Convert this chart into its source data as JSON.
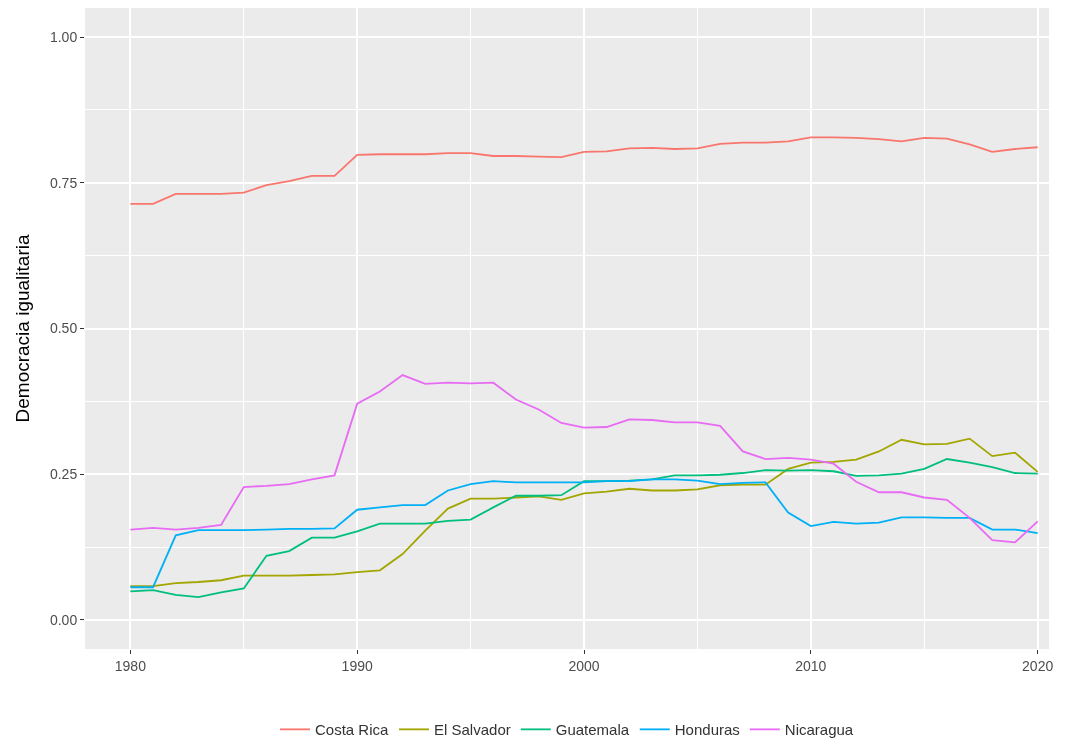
{
  "chart_data": {
    "type": "line",
    "ylabel": "Democracia igualitaria",
    "x": [
      1980,
      1981,
      1982,
      1983,
      1984,
      1985,
      1986,
      1987,
      1988,
      1989,
      1990,
      1991,
      1992,
      1993,
      1994,
      1995,
      1996,
      1997,
      1998,
      1999,
      2000,
      2001,
      2002,
      2003,
      2004,
      2005,
      2006,
      2007,
      2008,
      2009,
      2010,
      2011,
      2012,
      2013,
      2014,
      2015,
      2016,
      2017,
      2018,
      2019,
      2020
    ],
    "series": [
      {
        "name": "Costa Rica",
        "color": "#f8766d",
        "values": [
          0.714,
          0.714,
          0.731,
          0.731,
          0.731,
          0.733,
          0.746,
          0.753,
          0.762,
          0.762,
          0.798,
          0.799,
          0.799,
          0.799,
          0.801,
          0.801,
          0.796,
          0.796,
          0.795,
          0.794,
          0.803,
          0.804,
          0.809,
          0.81,
          0.808,
          0.809,
          0.817,
          0.819,
          0.819,
          0.821,
          0.828,
          0.828,
          0.827,
          0.825,
          0.821,
          0.827,
          0.826,
          0.816,
          0.803,
          0.808,
          0.811
        ]
      },
      {
        "name": "El Salvador",
        "color": "#a3a500",
        "values": [
          0.058,
          0.058,
          0.063,
          0.065,
          0.068,
          0.076,
          0.076,
          0.076,
          0.077,
          0.078,
          0.082,
          0.085,
          0.113,
          0.153,
          0.191,
          0.208,
          0.208,
          0.21,
          0.212,
          0.206,
          0.217,
          0.22,
          0.225,
          0.222,
          0.222,
          0.224,
          0.231,
          0.232,
          0.232,
          0.259,
          0.27,
          0.271,
          0.275,
          0.289,
          0.309,
          0.301,
          0.302,
          0.311,
          0.281,
          0.287,
          0.254
        ]
      },
      {
        "name": "Guatemala",
        "color": "#00bf7d",
        "values": [
          0.049,
          0.051,
          0.043,
          0.039,
          0.047,
          0.054,
          0.11,
          0.118,
          0.141,
          0.141,
          0.152,
          0.165,
          0.165,
          0.165,
          0.17,
          0.172,
          0.193,
          0.213,
          0.213,
          0.214,
          0.238,
          0.238,
          0.239,
          0.241,
          0.248,
          0.248,
          0.249,
          0.252,
          0.257,
          0.256,
          0.257,
          0.255,
          0.247,
          0.248,
          0.251,
          0.259,
          0.276,
          0.27,
          0.262,
          0.252,
          0.251
        ]
      },
      {
        "name": "Honduras",
        "color": "#00b0f6",
        "values": [
          0.056,
          0.056,
          0.145,
          0.154,
          0.154,
          0.154,
          0.155,
          0.156,
          0.156,
          0.157,
          0.189,
          0.193,
          0.197,
          0.197,
          0.222,
          0.233,
          0.238,
          0.236,
          0.236,
          0.236,
          0.236,
          0.238,
          0.238,
          0.241,
          0.241,
          0.239,
          0.233,
          0.235,
          0.236,
          0.184,
          0.161,
          0.168,
          0.165,
          0.167,
          0.176,
          0.176,
          0.175,
          0.175,
          0.155,
          0.155,
          0.149
        ]
      },
      {
        "name": "Nicaragua",
        "color": "#e76bf3",
        "values": [
          0.155,
          0.158,
          0.155,
          0.158,
          0.163,
          0.228,
          0.23,
          0.233,
          0.241,
          0.248,
          0.371,
          0.392,
          0.42,
          0.405,
          0.407,
          0.406,
          0.407,
          0.378,
          0.361,
          0.338,
          0.33,
          0.331,
          0.344,
          0.343,
          0.339,
          0.339,
          0.333,
          0.289,
          0.276,
          0.278,
          0.275,
          0.268,
          0.237,
          0.219,
          0.219,
          0.21,
          0.206,
          0.175,
          0.137,
          0.133,
          0.169
        ]
      }
    ],
    "xlim": [
      1978,
      2020.5
    ],
    "xticks": [
      1980,
      1990,
      2000,
      2010,
      2020
    ],
    "ylim": [
      -0.05,
      1.05
    ],
    "yticks": [
      {
        "value": 0,
        "label": "0.00"
      },
      {
        "value": 0.25,
        "label": "0.25"
      },
      {
        "value": 0.5,
        "label": "0.50"
      },
      {
        "value": 0.75,
        "label": "0.75"
      },
      {
        "value": 1,
        "label": "1.00"
      }
    ],
    "grid": true,
    "legend": "bottom",
    "marker": "none",
    "line_style": "solid"
  }
}
